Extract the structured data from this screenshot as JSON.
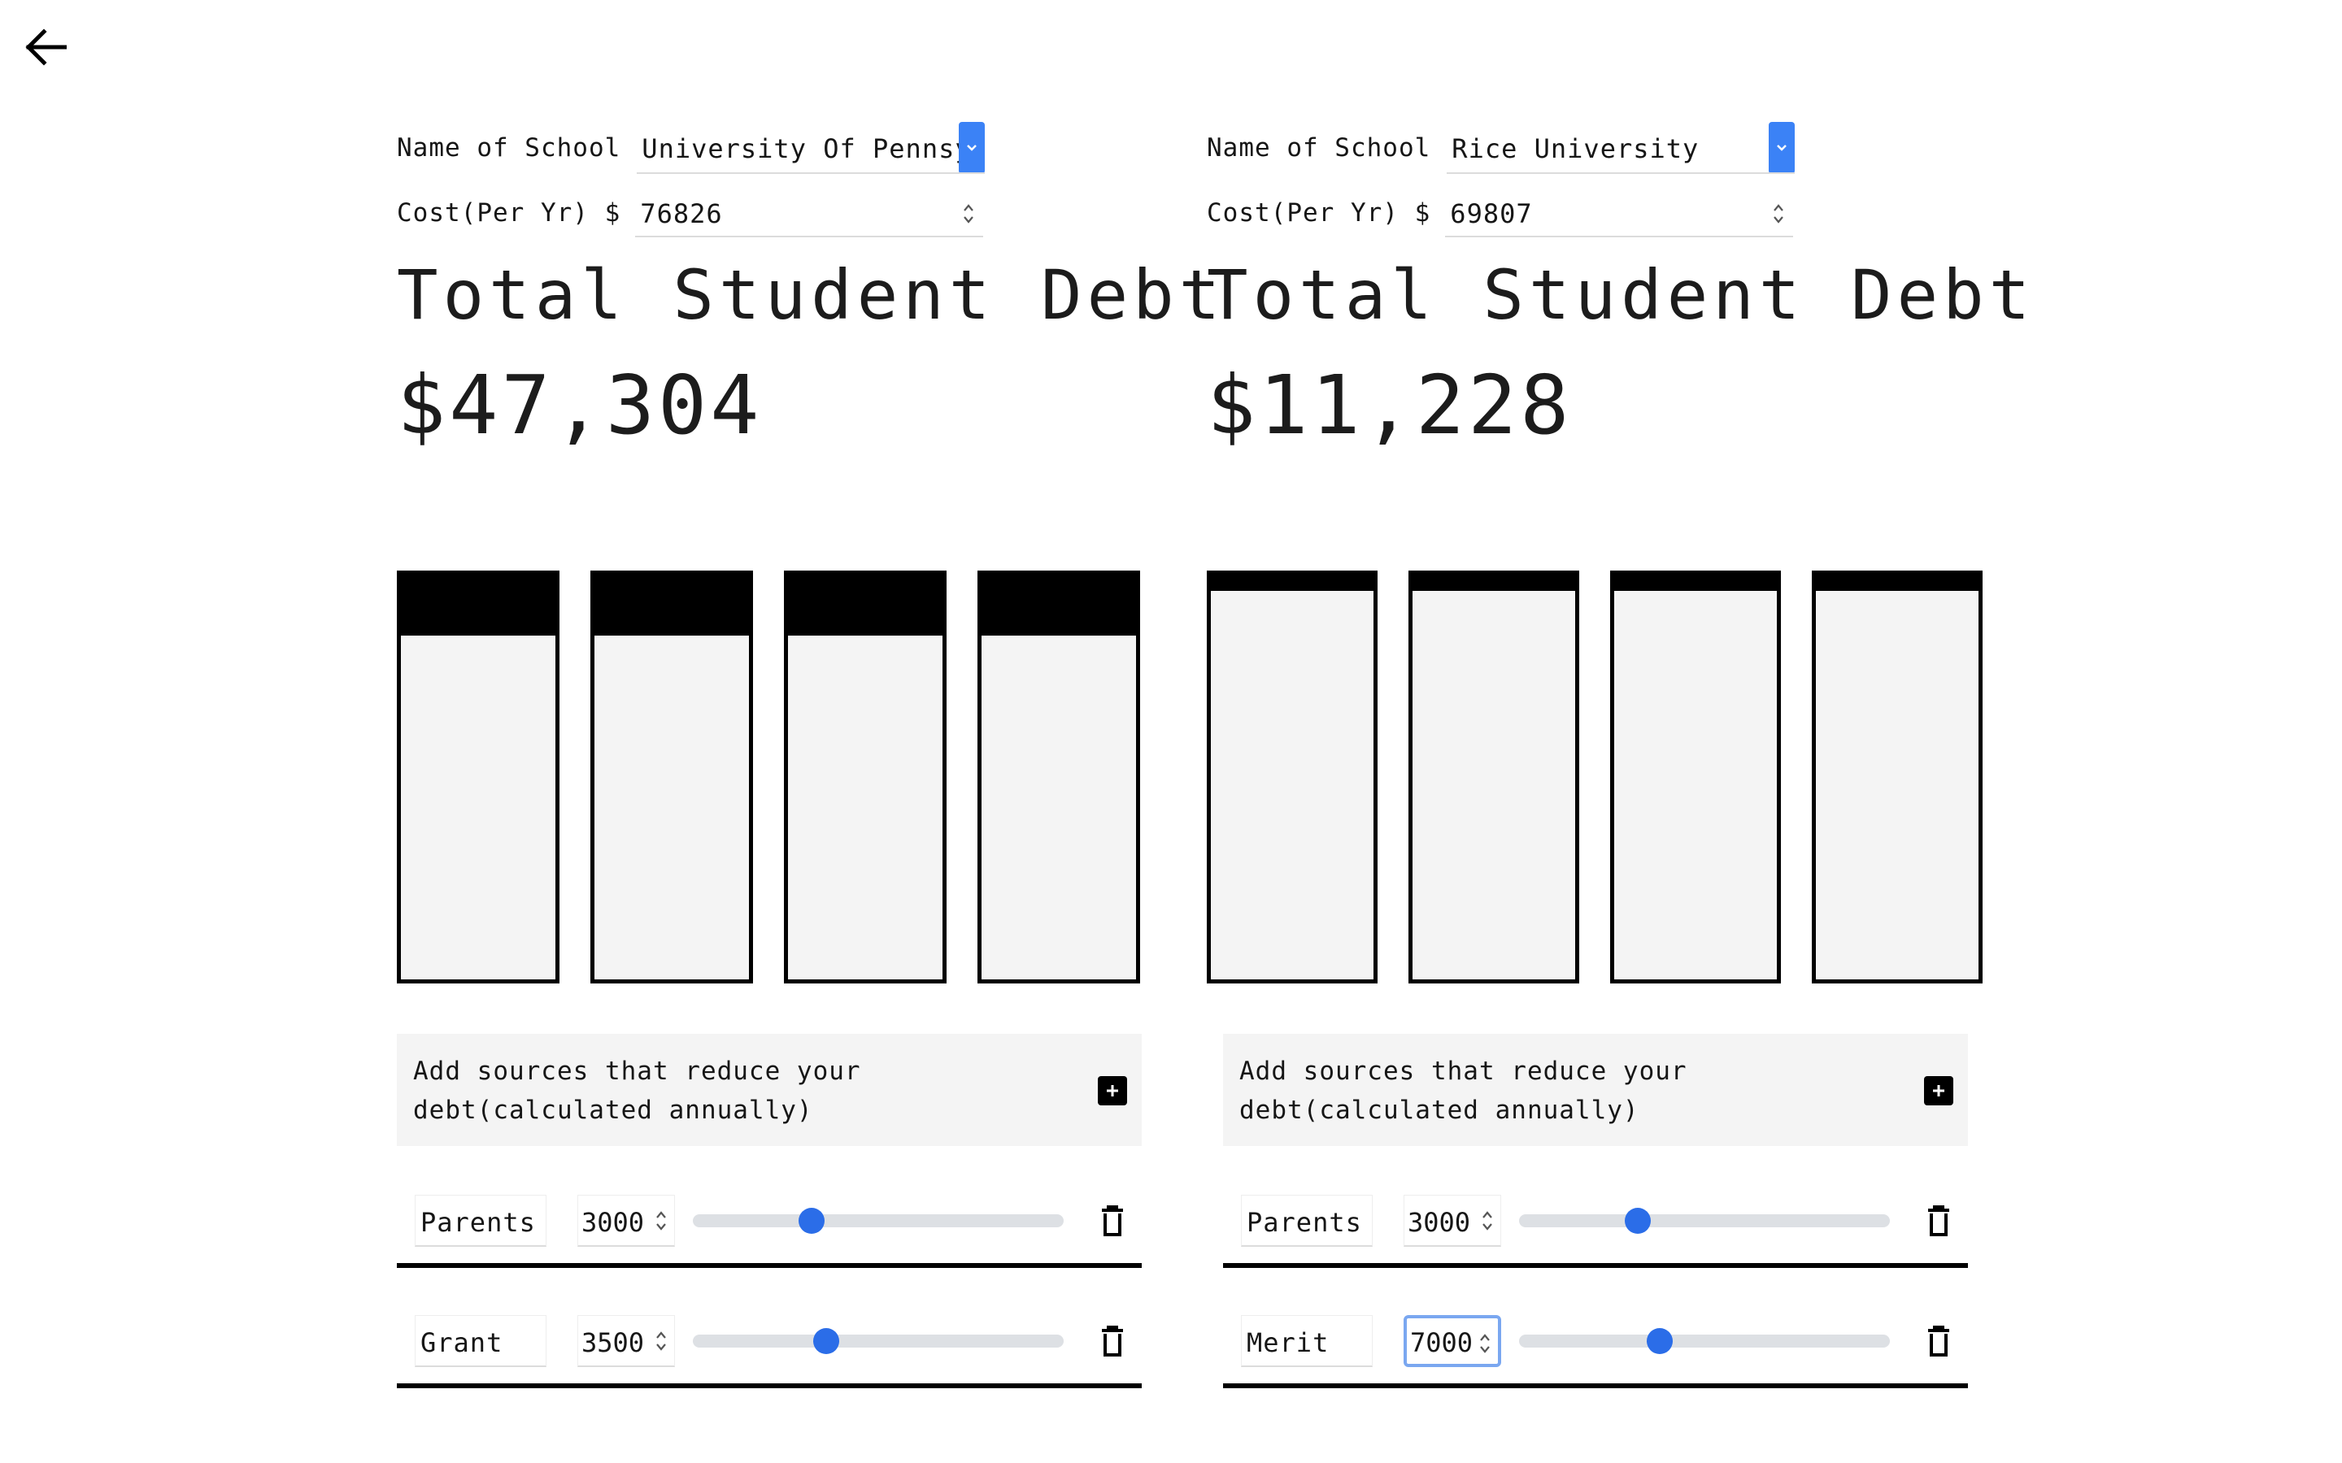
{
  "nav": {
    "back_icon": "arrow-left-icon"
  },
  "colors": {
    "accent": "#3b82f6",
    "slider_knob": "#2b6de8",
    "bar_fill": "#f4f4f4",
    "bar_border": "#000000"
  },
  "columns": [
    {
      "school_label": "Name of School",
      "school_value": "University Of Pennsylvania",
      "cost_label": "Cost(Per Yr) $",
      "cost_value": "76826",
      "debt_title": "Total Student Debt",
      "debt_amount": "$47,304",
      "year_bars": [
        {
          "debt_fraction": 0.15
        },
        {
          "debt_fraction": 0.15
        },
        {
          "debt_fraction": 0.15
        },
        {
          "debt_fraction": 0.15
        }
      ],
      "sources_text": "Add sources that reduce your debt(calculated annually)",
      "sources": [
        {
          "name": "Parents",
          "amount": "3000",
          "slider_fraction": 0.32
        },
        {
          "name": "Grant",
          "amount": "3500",
          "slider_fraction": 0.36
        }
      ]
    },
    {
      "school_label": "Name of School",
      "school_value": "Rice University",
      "cost_label": "Cost(Per Yr) $",
      "cost_value": "69807",
      "debt_title": "Total Student Debt",
      "debt_amount": "$11,228",
      "year_bars": [
        {
          "debt_fraction": 0.04
        },
        {
          "debt_fraction": 0.04
        },
        {
          "debt_fraction": 0.04
        },
        {
          "debt_fraction": 0.04
        }
      ],
      "sources_text": "Add sources that reduce your debt(calculated annually)",
      "sources": [
        {
          "name": "Parents",
          "amount": "3000",
          "slider_fraction": 0.32
        },
        {
          "name": "Merit",
          "amount": "7000",
          "slider_fraction": 0.38
        }
      ]
    }
  ]
}
